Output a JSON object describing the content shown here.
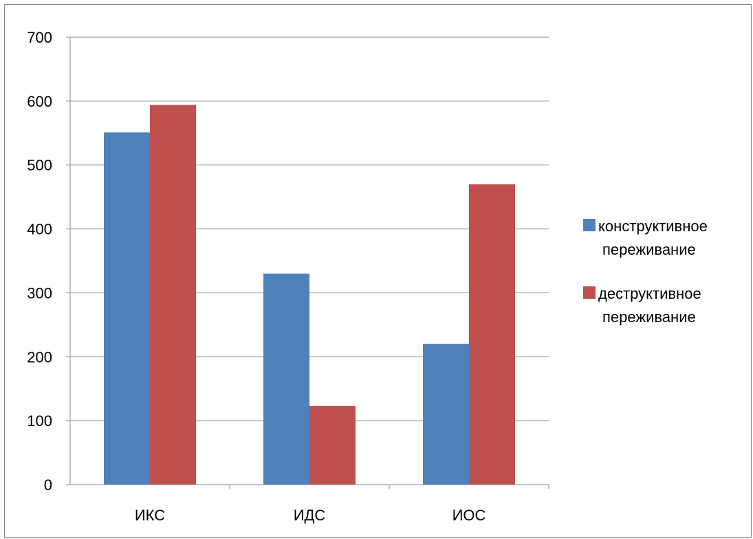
{
  "chart_data": {
    "type": "bar",
    "categories": [
      "ИКС",
      "ИДС",
      "ИОС"
    ],
    "series": [
      {
        "name": "конструктивное переживание",
        "values": [
          551,
          330,
          220
        ],
        "color": "#4F81BD"
      },
      {
        "name": "деструктивное переживание",
        "values": [
          594,
          123,
          470
        ],
        "color": "#C0504D"
      }
    ],
    "ylim": [
      0,
      700
    ],
    "yticks": [
      0,
      100,
      200,
      300,
      400,
      500,
      600,
      700
    ],
    "grid": true,
    "legend_position": "right",
    "title": "",
    "xlabel": "",
    "ylabel": ""
  }
}
